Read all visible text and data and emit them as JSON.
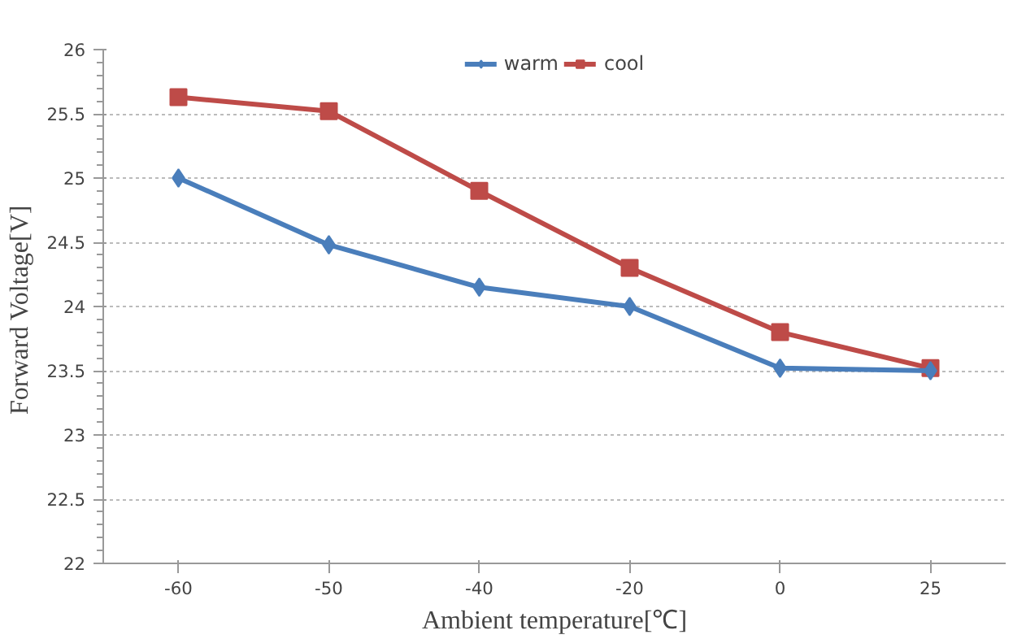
{
  "chart_data": {
    "type": "line",
    "xlabel": "Ambient temperature[℃]",
    "ylabel": "Forward  Voltage[V]",
    "categories": [
      "-60",
      "-50",
      "-40",
      "-20",
      "0",
      "25"
    ],
    "series": [
      {
        "name": "warm",
        "color": "#4a7ebb",
        "marker": "diamond",
        "values": [
          25.0,
          24.48,
          24.15,
          24.0,
          23.52,
          23.5
        ]
      },
      {
        "name": "cool",
        "color": "#be4b48",
        "marker": "square",
        "values": [
          25.63,
          25.52,
          24.9,
          24.3,
          23.8,
          23.52
        ]
      }
    ],
    "ylim": [
      22,
      26
    ],
    "yticks": [
      22,
      22.5,
      23,
      23.5,
      24,
      24.5,
      25,
      25.5,
      26
    ],
    "grid": "y",
    "legend": "top",
    "line_style": "solid"
  }
}
